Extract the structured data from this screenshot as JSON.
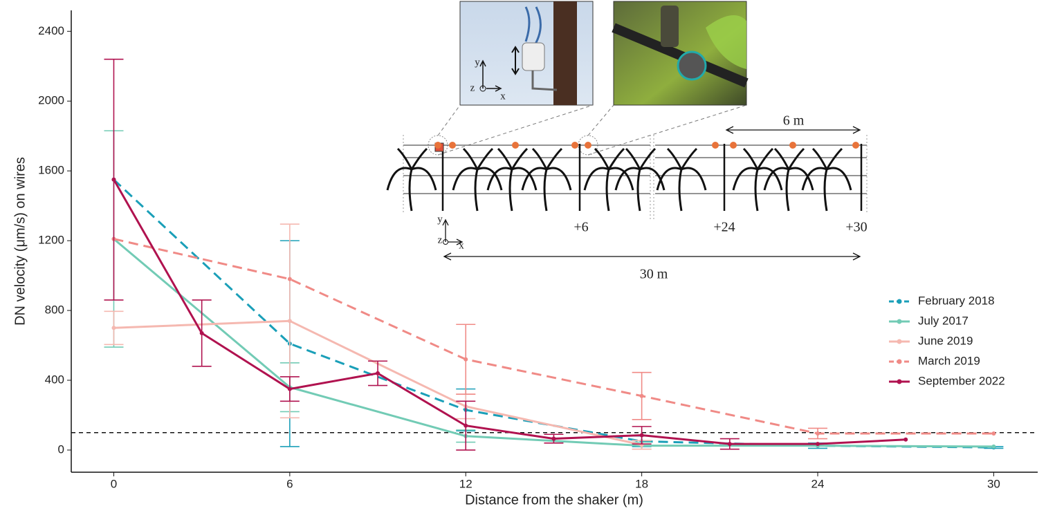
{
  "chart_data": {
    "type": "line",
    "x_label": "Distance from the shaker (m)",
    "y_label": "DN velocity (μm/s) on wires",
    "xlim": [
      -1.45,
      31.5
    ],
    "ylim": [
      -127,
      2520
    ],
    "xticks": [
      0,
      6,
      12,
      18,
      24,
      30
    ],
    "yticks": [
      0,
      400,
      800,
      1200,
      1600,
      2000,
      2400
    ],
    "grid": false,
    "legend": "right",
    "threshold": 100,
    "series": [
      {
        "name": "February 2018",
        "color": "#1a9fb8",
        "dashed": true,
        "x": [
          0,
          6,
          12,
          18,
          24,
          30
        ],
        "values": [
          1550,
          610,
          230,
          50,
          25,
          15
        ],
        "errors": [
          null,
          590,
          120,
          30,
          15,
          5
        ]
      },
      {
        "name": "July 2017",
        "color": "#72cbb5",
        "dashed": false,
        "x": [
          0,
          6,
          12,
          18,
          24,
          30
        ],
        "values": [
          1210,
          360,
          80,
          25,
          25,
          20
        ],
        "errors": [
          620,
          140,
          35,
          20,
          null,
          null
        ]
      },
      {
        "name": "June 2019",
        "color": "#f5b8b0",
        "dashed": false,
        "x": [
          0,
          6,
          12,
          18
        ],
        "values": [
          700,
          740,
          250,
          30
        ],
        "errors": [
          95,
          555,
          70,
          25
        ]
      },
      {
        "name": "March 2019",
        "color": "#f08a86",
        "dashed": true,
        "x": [
          0,
          6,
          12,
          18,
          24,
          30
        ],
        "values": [
          1210,
          980,
          520,
          310,
          95,
          95
        ],
        "errors": [
          null,
          null,
          200,
          135,
          30,
          null
        ]
      },
      {
        "name": "September 2022",
        "color": "#b0124f",
        "dashed": false,
        "x": [
          0,
          3,
          6,
          9,
          12,
          15,
          18,
          21,
          24,
          27
        ],
        "values": [
          1550,
          670,
          350,
          440,
          140,
          65,
          85,
          35,
          35,
          60
        ],
        "errors": [
          690,
          190,
          70,
          70,
          140,
          25,
          50,
          30,
          null,
          null
        ]
      }
    ],
    "inset_labels": [
      "y",
      "z",
      "x",
      "6 m",
      "+6",
      "+24",
      "+30",
      "y",
      "z",
      "x",
      "30 m"
    ]
  }
}
